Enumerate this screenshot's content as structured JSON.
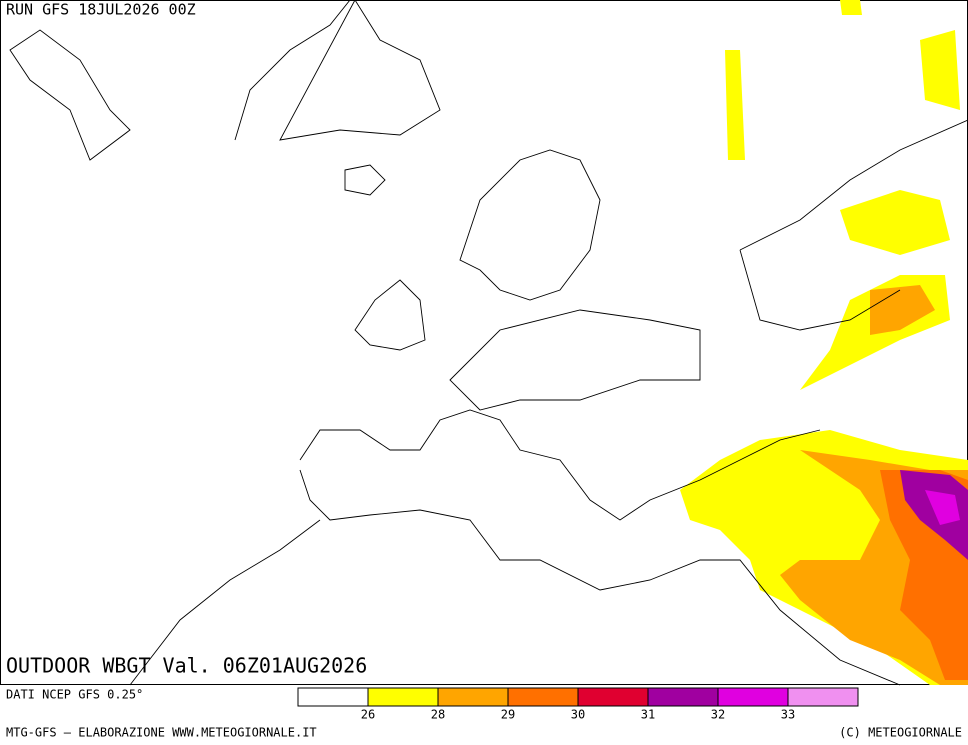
{
  "header": {
    "run": "RUN GFS 18JUL2026 00Z"
  },
  "map": {
    "title": "OUTDOOR WBGT Val. 06Z01AUG2026"
  },
  "legend": {
    "source": "DATI NCEP GFS 0.25°",
    "colors": [
      "#ffffff",
      "#ffff00",
      "#ffa500",
      "#ff7000",
      "#e00030",
      "#a000a0",
      "#e000e0",
      "#f090f0"
    ],
    "levels": [
      26,
      28,
      29,
      30,
      31,
      32,
      33
    ]
  },
  "footer": {
    "left": "MTG-GFS – ELABORAZIONE WWW.METEOGIORNALE.IT",
    "right": "(C) METEOGIORNALE"
  }
}
